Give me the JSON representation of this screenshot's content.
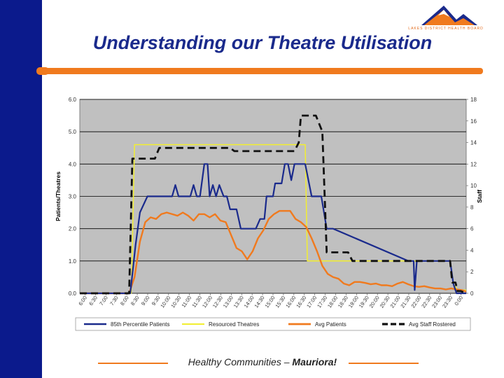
{
  "header": {
    "title": "Understanding our Theatre Utilisation",
    "logo_text": "LAKES DISTRICT HEALTH BOARD"
  },
  "footer": {
    "text": "Healthy Communities – ",
    "emphasis": "Mauriora!"
  },
  "colors": {
    "band": "#0b1a8c",
    "accent": "#f07a1e",
    "plot_bg": "#c0c0c0",
    "p85": "#1a2a8c",
    "resourced": "#f2ee30",
    "avg_patients": "#f07a1e",
    "avg_staff": "#111111"
  },
  "chart_data": {
    "type": "line",
    "title": "",
    "ylabel": "Patients/Theatres",
    "y2label": "Staff",
    "ylim": [
      0,
      6
    ],
    "y2lim": [
      0,
      18
    ],
    "yticks": [
      "0.0",
      "1.0",
      "2.0",
      "3.0",
      "4.0",
      "5.0",
      "6.0"
    ],
    "y2ticks": [
      "0",
      "2",
      "4",
      "6",
      "8",
      "10",
      "12",
      "14",
      "16",
      "18"
    ],
    "grid": true,
    "legend_position": "bottom",
    "categories": [
      "6:00",
      "6:30",
      "7:00",
      "7:30",
      "8:00",
      "8:30",
      "9:00",
      "9:30",
      "10:00",
      "10:30",
      "11:00",
      "11:30",
      "12:00",
      "12:30",
      "13:00",
      "13:30",
      "14:00",
      "14:30",
      "15:00",
      "15:30",
      "16:00",
      "16:30",
      "17:00",
      "17:30",
      "18:00",
      "18:30",
      "19:00",
      "19:30",
      "20:00",
      "20:30",
      "21:00",
      "21:30",
      "22:00",
      "22:30",
      "23:00",
      "23:30",
      "0:00"
    ],
    "series": [
      {
        "name": "85th Percentile Patients",
        "axis": "left",
        "color": "#1a2a8c",
        "x": [
          6.0,
          8.35,
          8.6,
          8.8,
          9.15,
          9.45,
          10.3,
          10.45,
          10.6,
          10.9,
          11.15,
          11.3,
          11.45,
          11.6,
          11.8,
          11.95,
          12.05,
          12.2,
          12.35,
          12.5,
          12.7,
          12.85,
          13.0,
          13.15,
          13.3,
          13.5,
          13.65,
          13.8,
          14.0,
          14.2,
          14.4,
          14.5,
          14.6,
          14.7,
          14.8,
          15.0,
          15.1,
          15.25,
          15.4,
          15.55,
          15.7,
          15.85,
          16.0,
          16.15,
          16.3,
          16.5,
          16.8,
          16.95,
          17.25,
          17.5,
          17.6,
          17.8,
          21.3,
          21.35,
          21.45,
          21.55,
          21.6,
          21.7,
          23.25,
          23.4,
          23.55,
          23.7,
          24.0
        ],
        "y": [
          0,
          0,
          1.5,
          2.5,
          3.0,
          3.0,
          3.0,
          3.35,
          3.0,
          3.0,
          3.0,
          3.35,
          3.0,
          3.0,
          4.0,
          4.0,
          3.0,
          3.35,
          3.0,
          3.35,
          3.0,
          3.0,
          2.6,
          2.6,
          2.6,
          2.0,
          2.0,
          2.0,
          2.0,
          2.0,
          2.3,
          2.3,
          2.3,
          3.0,
          3.0,
          3.0,
          3.4,
          3.4,
          3.4,
          4.0,
          4.0,
          3.5,
          4.0,
          4.0,
          4.0,
          4.0,
          3.0,
          3.0,
          3.0,
          2.0,
          2.0,
          2.0,
          1.0,
          1.0,
          1.0,
          1.0,
          0.1,
          1.0,
          1.0,
          0.3,
          0.0,
          0.0,
          0.0
        ]
      },
      {
        "name": "Resourced Theatres",
        "axis": "left",
        "color": "#f2ee30",
        "x": [
          6.0,
          8.4,
          8.55,
          16.5,
          16.6,
          17.3,
          17.4,
          23.25,
          23.4,
          23.6,
          24.0
        ],
        "y": [
          0,
          0,
          4.6,
          4.6,
          1.0,
          1.0,
          1.0,
          1.0,
          0.3,
          0.1,
          0.1
        ]
      },
      {
        "name": "Avg Patients",
        "axis": "left",
        "color": "#f07a1e",
        "x": [
          6.0,
          8.3,
          8.55,
          8.8,
          9.05,
          9.3,
          9.55,
          9.8,
          10.05,
          10.3,
          10.55,
          10.8,
          11.05,
          11.3,
          11.55,
          11.8,
          12.05,
          12.3,
          12.55,
          12.8,
          13.05,
          13.3,
          13.55,
          13.8,
          14.05,
          14.3,
          14.55,
          14.8,
          15.05,
          15.3,
          15.55,
          15.8,
          16.05,
          16.3,
          16.55,
          16.8,
          17.05,
          17.3,
          17.55,
          17.8,
          18.05,
          18.3,
          18.55,
          18.8,
          19.05,
          19.3,
          19.55,
          19.8,
          20.05,
          20.3,
          20.55,
          20.8,
          21.05,
          21.3,
          21.55,
          21.8,
          22.05,
          22.3,
          22.55,
          22.8,
          23.05,
          23.3,
          23.55,
          23.8,
          24.0
        ],
        "y": [
          0,
          0,
          0.5,
          1.6,
          2.2,
          2.35,
          2.3,
          2.45,
          2.5,
          2.45,
          2.4,
          2.5,
          2.4,
          2.25,
          2.45,
          2.45,
          2.35,
          2.45,
          2.25,
          2.2,
          1.8,
          1.4,
          1.3,
          1.05,
          1.3,
          1.7,
          1.95,
          2.3,
          2.45,
          2.55,
          2.55,
          2.55,
          2.3,
          2.2,
          2.05,
          1.7,
          1.3,
          0.85,
          0.6,
          0.5,
          0.45,
          0.3,
          0.25,
          0.35,
          0.35,
          0.32,
          0.28,
          0.3,
          0.25,
          0.25,
          0.22,
          0.3,
          0.35,
          0.28,
          0.22,
          0.2,
          0.22,
          0.18,
          0.15,
          0.15,
          0.12,
          0.15,
          0.12,
          0.1,
          0.05
        ]
      },
      {
        "name": "Avg Staff Rostered",
        "axis": "right",
        "color": "#111111",
        "x": [
          6.0,
          8.3,
          8.45,
          8.55,
          9.5,
          9.7,
          10.0,
          12.5,
          13.0,
          13.2,
          13.5,
          16.0,
          16.2,
          16.3,
          16.8,
          17.0,
          17.3,
          17.5,
          17.6,
          18.5,
          18.7,
          23.25,
          23.35,
          23.5,
          23.6,
          23.75,
          24.0
        ],
        "y": [
          0,
          0,
          12.5,
          12.5,
          12.5,
          13.5,
          13.5,
          13.5,
          13.5,
          13.2,
          13.2,
          13.2,
          14.0,
          16.5,
          16.5,
          16.5,
          15.0,
          3.8,
          3.8,
          3.8,
          3.0,
          3.0,
          1.0,
          1.0,
          0.2,
          0.2,
          0.0
        ]
      }
    ]
  }
}
